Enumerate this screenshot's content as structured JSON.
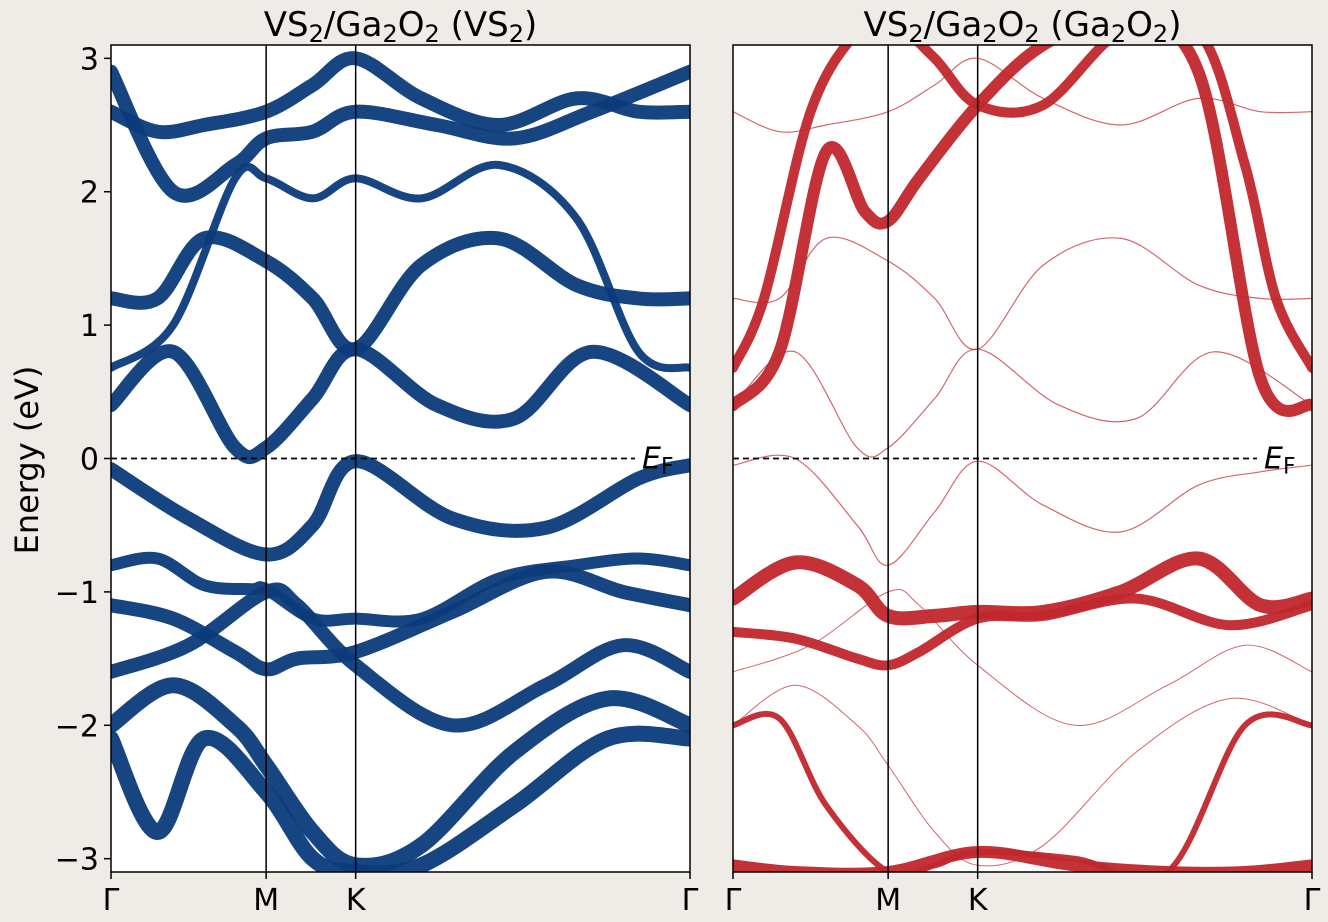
{
  "figure": {
    "ylabel": "Energy (eV)",
    "ylim": [
      -3.1,
      3.1
    ],
    "yticks": [
      3,
      2,
      1,
      0,
      -1,
      -2,
      -3
    ],
    "ytick_labels": [
      "3",
      "2",
      "1",
      "0",
      "−1",
      "−2",
      "−3"
    ],
    "fermi_label_main": "E",
    "fermi_label_sub": "F"
  },
  "chart_data": [
    {
      "type": "line",
      "panel": "left",
      "title_text": "VS",
      "title_sub1": "2",
      "title_mid": "/Ga",
      "title_sub2": "2",
      "title_mid2": "O",
      "title_sub3": "2",
      "title_tail": " (VS",
      "title_sub4": "2",
      "title_end": ")",
      "color": "#0b3b7a",
      "xticks": [
        "Γ",
        "M",
        "K",
        "Γ"
      ],
      "k_positions": [
        0,
        1,
        1.577,
        3.732
      ],
      "fermi_level": 0,
      "series": [
        {
          "x": [
            0,
            0.5,
            1,
            1.3,
            1.577,
            2.2,
            2.8,
            3.4,
            3.732
          ],
          "y": [
            -0.08,
            -0.45,
            -0.72,
            -0.5,
            -0.02,
            -0.45,
            -0.52,
            -0.15,
            -0.05
          ],
          "w": 14
        },
        {
          "x": [
            0,
            0.4,
            0.8,
            1,
            1.3,
            1.577,
            2.1,
            2.6,
            3.1,
            3.732
          ],
          "y": [
            0.4,
            0.8,
            0.08,
            0.08,
            0.45,
            0.82,
            0.4,
            0.3,
            0.8,
            0.4
          ],
          "w": 14
        },
        {
          "x": [
            0,
            0.3,
            0.6,
            1,
            1.3,
            1.577,
            2.0,
            2.5,
            3.0,
            3.4,
            3.732
          ],
          "y": [
            1.2,
            1.2,
            1.65,
            1.48,
            1.2,
            0.82,
            1.45,
            1.65,
            1.3,
            1.2,
            1.2
          ],
          "w": 14
        },
        {
          "x": [
            0,
            0.4,
            0.8,
            1,
            1.3,
            1.577,
            2.0,
            2.5,
            3.0,
            3.4,
            3.732
          ],
          "y": [
            0.68,
            1.0,
            2.1,
            2.1,
            1.95,
            2.1,
            1.95,
            2.2,
            1.8,
            0.8,
            0.68
          ],
          "w": 8
        },
        {
          "x": [
            0,
            0.3,
            0.6,
            1,
            1.3,
            1.577,
            2.0,
            2.5,
            3.0,
            3.4,
            3.732
          ],
          "y": [
            2.6,
            2.45,
            2.5,
            2.6,
            2.8,
            3.0,
            2.7,
            2.5,
            2.7,
            2.6,
            2.6
          ],
          "w": 14
        },
        {
          "x": [
            0,
            0.4,
            0.8,
            1,
            1.3,
            1.577,
            2.1,
            2.6,
            3.1,
            3.732
          ],
          "y": [
            2.9,
            2.0,
            2.2,
            2.4,
            2.45,
            2.6,
            2.5,
            2.4,
            2.6,
            2.9
          ],
          "w": 14
        },
        {
          "x": [
            0,
            0.3,
            0.6,
            0.9,
            1.0,
            1.3,
            1.577,
            2.0,
            2.5,
            3.0,
            3.4,
            3.732
          ],
          "y": [
            -0.8,
            -0.75,
            -0.95,
            -0.98,
            -0.98,
            -1.2,
            -1.2,
            -1.2,
            -0.9,
            -0.8,
            -0.75,
            -0.8
          ],
          "w": 12
        },
        {
          "x": [
            0,
            0.4,
            0.8,
            1,
            1.2,
            1.577,
            2.2,
            2.8,
            3.3,
            3.732
          ],
          "y": [
            -1.1,
            -1.2,
            -1.45,
            -1.58,
            -1.5,
            -1.45,
            -1.15,
            -0.85,
            -1.0,
            -1.1
          ],
          "w": 14
        },
        {
          "x": [
            0,
            0.5,
            1,
            1.2,
            1.577,
            2.2,
            2.8,
            3.3,
            3.732
          ],
          "y": [
            -1.6,
            -1.4,
            -1.0,
            -1.1,
            -1.55,
            -2.0,
            -1.7,
            -1.4,
            -1.6
          ],
          "w": 14
        },
        {
          "x": [
            0,
            0.4,
            0.8,
            1,
            1.3,
            1.577,
            2.0,
            2.6,
            3.2,
            3.732
          ],
          "y": [
            -2.0,
            -1.7,
            -2.0,
            -2.3,
            -2.8,
            -3.05,
            -2.9,
            -2.2,
            -1.8,
            -2.0
          ],
          "w": 16
        },
        {
          "x": [
            0,
            0.3,
            0.6,
            1,
            1.3,
            1.577,
            2.0,
            2.6,
            3.2,
            3.732
          ],
          "y": [
            -2.1,
            -2.8,
            -2.1,
            -2.5,
            -3.0,
            -3.1,
            -3.05,
            -2.6,
            -2.1,
            -2.1
          ],
          "w": 16
        }
      ]
    },
    {
      "type": "line",
      "panel": "right",
      "title_text": "VS",
      "title_sub1": "2",
      "title_mid": "/Ga",
      "title_sub2": "2",
      "title_mid2": "O",
      "title_sub3": "2",
      "title_tail": " (Ga",
      "title_sub4": "2",
      "title_mid3": "O",
      "title_sub5": "2",
      "title_end": ")",
      "color": "#c1272d",
      "xticks": [
        "Γ",
        "M",
        "K",
        "Γ"
      ],
      "k_positions": [
        0,
        1,
        1.577,
        3.732
      ],
      "fermi_level": 0,
      "series": [
        {
          "x": [
            0,
            0.3,
            0.6,
            0.85,
            1,
            1.2,
            1.577,
            2.0,
            2.5,
            3.0,
            3.4,
            3.732
          ],
          "y": [
            0.4,
            0.8,
            2.3,
            1.85,
            1.78,
            2.1,
            2.65,
            3.1,
            3.3,
            2.9,
            0.6,
            0.4
          ],
          "w": 12
        },
        {
          "x": [
            0,
            0.2,
            0.5,
            0.8,
            1.0,
            1.3,
            1.577,
            2.0,
            2.5,
            3.0,
            3.3,
            3.5,
            3.732
          ],
          "y": [
            0.68,
            1.2,
            2.6,
            3.2,
            3.3,
            3.0,
            2.65,
            2.65,
            3.2,
            3.2,
            2.2,
            1.2,
            0.68
          ],
          "w": 10
        },
        {
          "x": [
            0,
            0.4,
            0.8,
            1,
            1.3,
            1.577,
            2.0,
            2.5,
            3.0,
            3.4,
            3.732
          ],
          "y": [
            -1.05,
            -0.78,
            -0.95,
            -1.18,
            -1.18,
            -1.15,
            -1.15,
            -1.0,
            -0.75,
            -1.1,
            -1.05
          ],
          "w": 14
        },
        {
          "x": [
            0,
            0.4,
            0.8,
            1,
            1.2,
            1.577,
            2.0,
            2.6,
            3.2,
            3.732
          ],
          "y": [
            -1.3,
            -1.35,
            -1.5,
            -1.55,
            -1.45,
            -1.2,
            -1.18,
            -1.05,
            -1.25,
            -1.1
          ],
          "w": 10
        },
        {
          "x": [
            0,
            0.3,
            0.6,
            1,
            1.3,
            1.577,
            2.2,
            2.8,
            3.3,
            3.732
          ],
          "y": [
            -2.0,
            -1.95,
            -2.6,
            -3.1,
            -3.05,
            -2.95,
            -3.0,
            -3.1,
            -2.0,
            -2.0
          ],
          "w": 6
        },
        {
          "x": [
            0,
            0.4,
            1,
            1.577,
            2.2,
            2.8,
            3.3,
            3.732
          ],
          "y": [
            -3.05,
            -3.1,
            -3.1,
            -2.95,
            -3.05,
            -3.1,
            -3.1,
            -3.05
          ],
          "w": 12
        },
        {
          "x": [
            0,
            0.4,
            0.8,
            1,
            1.3,
            1.577,
            2.0,
            2.5,
            3.0,
            3.4,
            3.732
          ],
          "y": [
            -0.05,
            0.0,
            -0.5,
            -0.8,
            -0.4,
            -0.02,
            -0.35,
            -0.55,
            -0.2,
            -0.1,
            -0.05
          ],
          "w": 1.2
        },
        {
          "x": [
            0,
            0.4,
            0.8,
            1,
            1.3,
            1.577,
            2.1,
            2.6,
            3.1,
            3.732
          ],
          "y": [
            0.4,
            0.8,
            0.08,
            0.08,
            0.45,
            0.82,
            0.4,
            0.3,
            0.8,
            0.4
          ],
          "w": 1.2
        },
        {
          "x": [
            0,
            0.3,
            0.6,
            1,
            1.3,
            1.577,
            2.0,
            2.5,
            3.0,
            3.4,
            3.732
          ],
          "y": [
            1.2,
            1.2,
            1.65,
            1.48,
            1.2,
            0.82,
            1.45,
            1.65,
            1.3,
            1.2,
            1.2
          ],
          "w": 1.2
        },
        {
          "x": [
            0,
            0.3,
            0.6,
            1,
            1.3,
            1.577,
            2.0,
            2.5,
            3.0,
            3.4,
            3.732
          ],
          "y": [
            2.6,
            2.45,
            2.5,
            2.6,
            2.8,
            3.0,
            2.7,
            2.5,
            2.7,
            2.6,
            2.6
          ],
          "w": 1.2
        },
        {
          "x": [
            0,
            0.5,
            1,
            1.2,
            1.577,
            2.2,
            2.8,
            3.3,
            3.732
          ],
          "y": [
            -1.6,
            -1.4,
            -1.0,
            -1.1,
            -1.55,
            -2.0,
            -1.7,
            -1.4,
            -1.6
          ],
          "w": 1.0
        },
        {
          "x": [
            0,
            0.4,
            0.8,
            1,
            1.3,
            1.577,
            2.0,
            2.6,
            3.2,
            3.732
          ],
          "y": [
            -2.0,
            -1.7,
            -2.0,
            -2.3,
            -2.8,
            -3.05,
            -2.9,
            -2.2,
            -1.8,
            -2.0
          ],
          "w": 1.0
        }
      ]
    }
  ]
}
